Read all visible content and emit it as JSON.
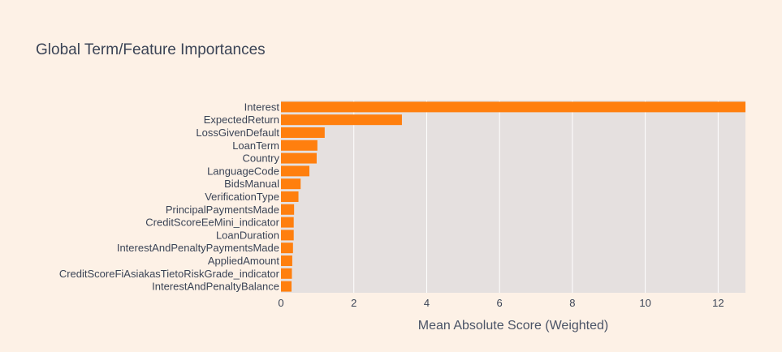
{
  "chart_data": {
    "type": "bar",
    "orientation": "horizontal",
    "title": "Global Term/Feature Importances",
    "xlabel": "Mean Absolute Score (Weighted)",
    "ylabel": "",
    "xlim": [
      0,
      12.75
    ],
    "xticks": [
      0,
      2,
      4,
      6,
      8,
      10,
      12
    ],
    "grid": true,
    "colors": {
      "bar": "#ff7f0e",
      "plot_bg": "#e5e0df",
      "paper_bg": "#fdf1e6",
      "grid": "#ffffff"
    },
    "categories": [
      "Interest",
      "ExpectedReturn",
      "LossGivenDefault",
      "LoanTerm",
      "Country",
      "LanguageCode",
      "BidsManual",
      "VerificationType",
      "PrincipalPaymentsMade",
      "CreditScoreEeMini_indicator",
      "LoanDuration",
      "InterestAndPenaltyPaymentsMade",
      "AppliedAmount",
      "CreditScoreFiAsiakasTietoRiskGrade_indicator",
      "InterestAndPenaltyBalance"
    ],
    "values": [
      12.75,
      3.32,
      1.2,
      1.0,
      0.98,
      0.78,
      0.54,
      0.48,
      0.36,
      0.35,
      0.35,
      0.33,
      0.31,
      0.3,
      0.29
    ]
  }
}
